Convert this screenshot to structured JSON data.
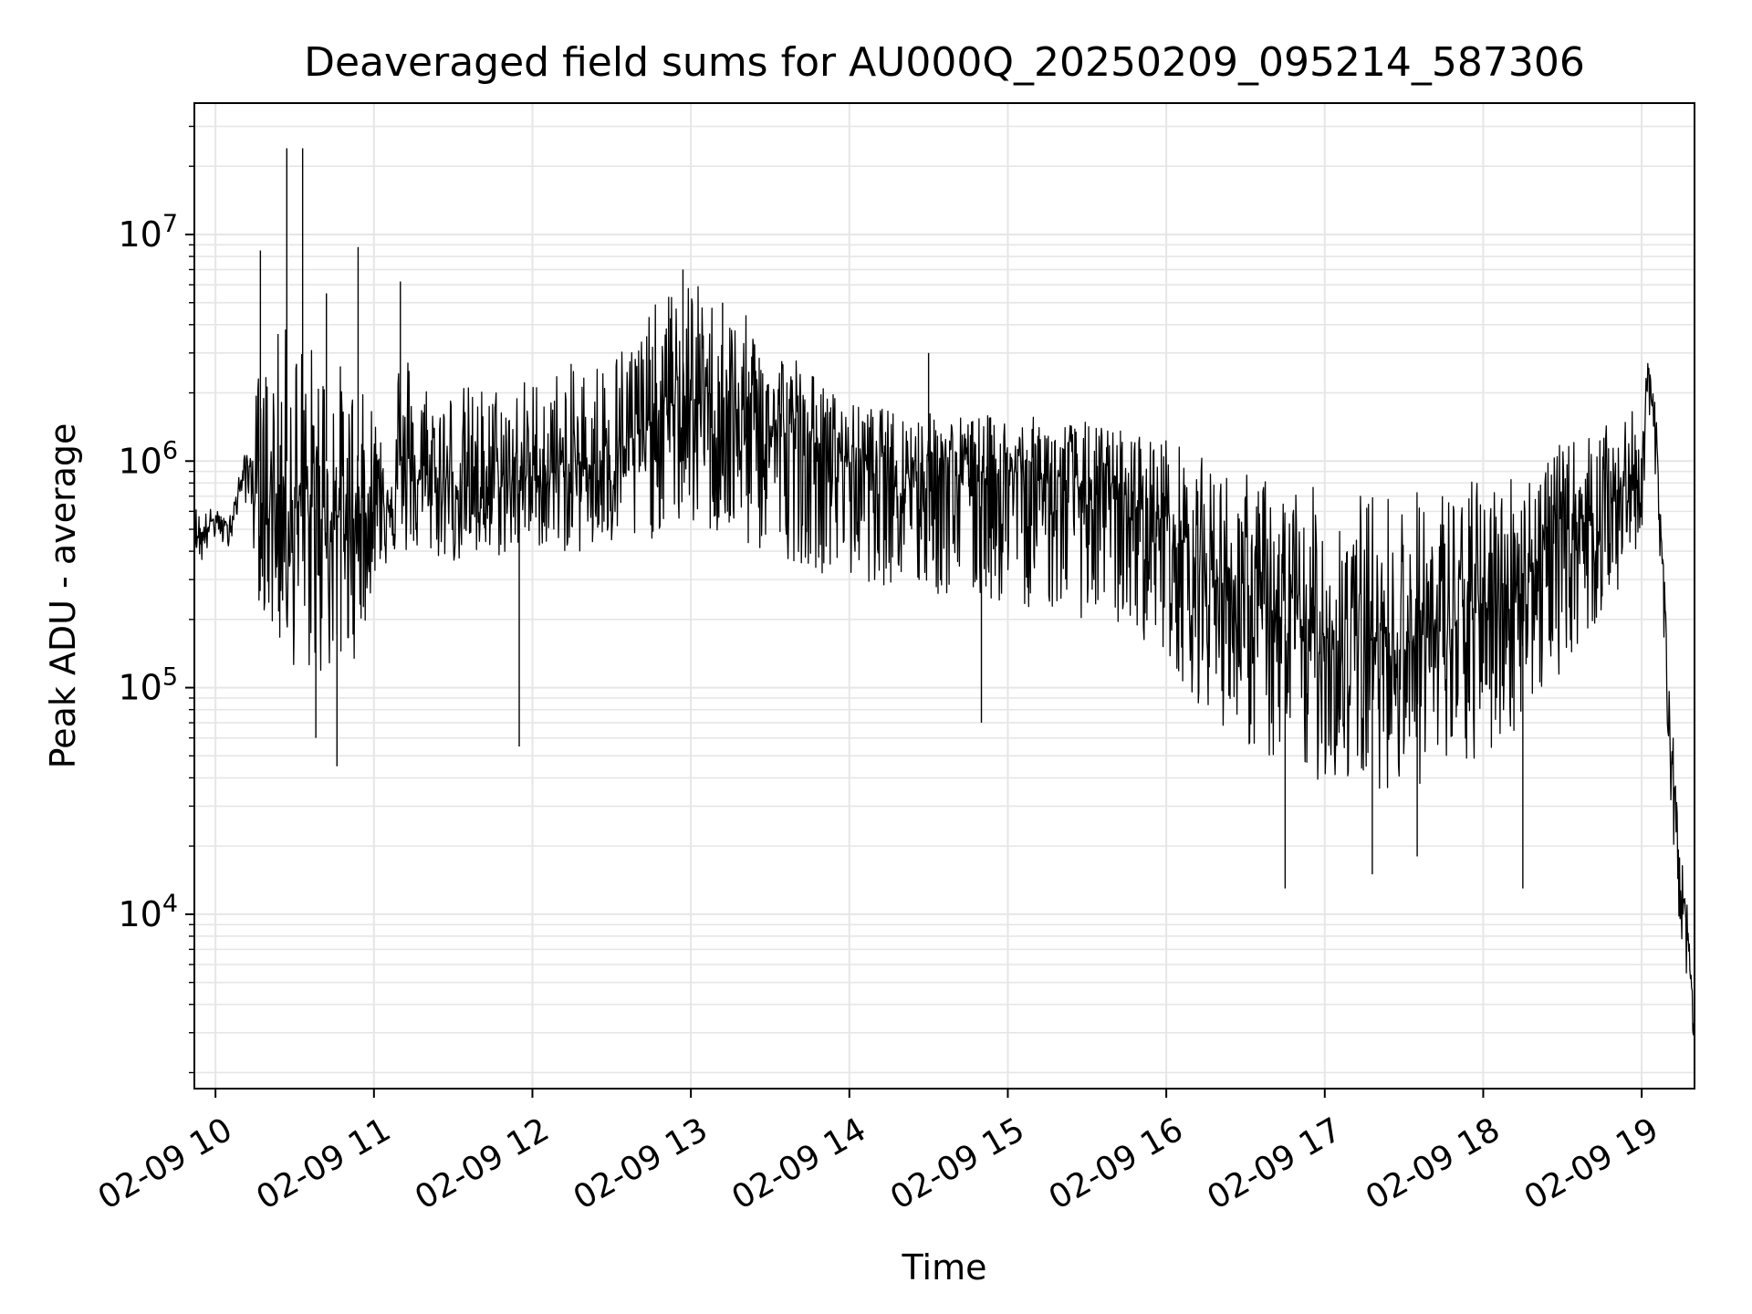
{
  "chart_data": {
    "type": "line",
    "title": "Deaveraged field sums for AU000Q_20250209_095214_587306",
    "xlabel": "Time",
    "ylabel": "Peak ADU - average",
    "y_scale": "log",
    "ylim": [
      1700,
      38000000
    ],
    "xlim": [
      "2025-02-09 09:52",
      "2025-02-09 19:20"
    ],
    "grid": true,
    "line_color": "#000000",
    "x_ticks": [
      {
        "label": "02-09 10",
        "time": "2025-02-09 10:00"
      },
      {
        "label": "02-09 11",
        "time": "2025-02-09 11:00"
      },
      {
        "label": "02-09 12",
        "time": "2025-02-09 12:00"
      },
      {
        "label": "02-09 13",
        "time": "2025-02-09 13:00"
      },
      {
        "label": "02-09 14",
        "time": "2025-02-09 14:00"
      },
      {
        "label": "02-09 15",
        "time": "2025-02-09 15:00"
      },
      {
        "label": "02-09 16",
        "time": "2025-02-09 16:00"
      },
      {
        "label": "02-09 17",
        "time": "2025-02-09 17:00"
      },
      {
        "label": "02-09 18",
        "time": "2025-02-09 18:00"
      },
      {
        "label": "02-09 19",
        "time": "2025-02-09 19:00"
      }
    ],
    "y_ticks": [
      {
        "base": "10",
        "exp": "4",
        "value": 10000
      },
      {
        "base": "10",
        "exp": "5",
        "value": 100000
      },
      {
        "base": "10",
        "exp": "6",
        "value": 1000000
      },
      {
        "base": "10",
        "exp": "7",
        "value": 10000000
      }
    ],
    "series": [
      {
        "x": [
          "2025-02-09 09:52",
          "2025-02-09 09:55",
          "2025-02-09 09:58",
          "2025-02-09 10:01",
          "2025-02-09 10:04",
          "2025-02-09 10:07",
          "2025-02-09 10:10",
          "2025-02-09 10:13",
          "2025-02-09 10:16",
          "2025-02-09 10:20",
          "2025-02-09 10:25",
          "2025-02-09 10:30",
          "2025-02-09 10:35",
          "2025-02-09 10:40",
          "2025-02-09 10:45",
          "2025-02-09 10:50",
          "2025-02-09 10:55",
          "2025-02-09 11:00",
          "2025-02-09 11:05",
          "2025-02-09 11:10",
          "2025-02-09 11:15",
          "2025-02-09 11:20",
          "2025-02-09 11:30",
          "2025-02-09 11:40",
          "2025-02-09 11:50",
          "2025-02-09 12:00",
          "2025-02-09 12:10",
          "2025-02-09 12:20",
          "2025-02-09 12:30",
          "2025-02-09 12:40",
          "2025-02-09 12:50",
          "2025-02-09 13:00",
          "2025-02-09 13:10",
          "2025-02-09 13:20",
          "2025-02-09 13:30",
          "2025-02-09 13:40",
          "2025-02-09 13:50",
          "2025-02-09 14:00",
          "2025-02-09 14:15",
          "2025-02-09 14:30",
          "2025-02-09 14:45",
          "2025-02-09 15:00",
          "2025-02-09 15:15",
          "2025-02-09 15:30",
          "2025-02-09 15:45",
          "2025-02-09 16:00",
          "2025-02-09 16:10",
          "2025-02-09 16:20",
          "2025-02-09 16:30",
          "2025-02-09 16:40",
          "2025-02-09 16:50",
          "2025-02-09 17:00",
          "2025-02-09 17:15",
          "2025-02-09 17:30",
          "2025-02-09 17:45",
          "2025-02-09 18:00",
          "2025-02-09 18:15",
          "2025-02-09 18:30",
          "2025-02-09 18:45",
          "2025-02-09 18:55",
          "2025-02-09 19:00",
          "2025-02-09 19:02",
          "2025-02-09 19:05",
          "2025-02-09 19:08",
          "2025-02-09 19:11",
          "2025-02-09 19:14",
          "2025-02-09 19:17",
          "2025-02-09 19:20"
        ],
        "y": [
          500000,
          450000,
          540000,
          560000,
          500000,
          600000,
          850000,
          950000,
          700000,
          650000,
          700000,
          650000,
          600000,
          620000,
          580000,
          560000,
          560000,
          650000,
          700000,
          900000,
          850000,
          800000,
          800000,
          750000,
          800000,
          850000,
          900000,
          950000,
          1050000,
          1300000,
          1700000,
          1900000,
          1600000,
          1500000,
          1400000,
          1300000,
          1150000,
          1050000,
          950000,
          950000,
          900000,
          900000,
          850000,
          750000,
          650000,
          550000,
          380000,
          300000,
          250000,
          200000,
          180000,
          170000,
          165000,
          165000,
          175000,
          230000,
          320000,
          480000,
          650000,
          800000,
          900000,
          2400000,
          1500000,
          350000,
          60000,
          18000,
          9000,
          3000
        ],
        "envelope_low": [
          420000,
          350000,
          430000,
          460000,
          400000,
          480000,
          700000,
          600000,
          250000,
          180000,
          140000,
          120000,
          110000,
          110000,
          110000,
          120000,
          150000,
          300000,
          350000,
          380000,
          380000,
          380000,
          350000,
          350000,
          380000,
          420000,
          400000,
          380000,
          400000,
          400000,
          500000,
          500000,
          450000,
          400000,
          380000,
          360000,
          320000,
          300000,
          280000,
          250000,
          240000,
          230000,
          220000,
          200000,
          180000,
          140000,
          90000,
          70000,
          55000,
          45000,
          40000,
          38000,
          36000,
          36000,
          38000,
          45000,
          70000,
          120000,
          200000,
          300000,
          380000,
          1800000,
          800000,
          150000,
          30000,
          10000,
          5000,
          2600
        ],
        "envelope_high": [
          650000,
          600000,
          620000,
          600000,
          550000,
          700000,
          1000000,
          1200000,
          2500000,
          3000000,
          4000000,
          4000000,
          3500000,
          3200000,
          3000000,
          2500000,
          2000000,
          2000000,
          2400000,
          3500000,
          3000000,
          2400000,
          2200000,
          2200000,
          2300000,
          2400000,
          2600000,
          2800000,
          3200000,
          4000000,
          5500000,
          6500000,
          5000000,
          4500000,
          3500000,
          3000000,
          2200000,
          1800000,
          1700000,
          1650000,
          1600000,
          1600000,
          1550000,
          1500000,
          1400000,
          1300000,
          1100000,
          950000,
          900000,
          850000,
          800000,
          750000,
          750000,
          750000,
          800000,
          850000,
          950000,
          1200000,
          1400000,
          1600000,
          1800000,
          2800000,
          2000000,
          500000,
          90000,
          25000,
          12000,
          3500
        ]
      }
    ],
    "spikes": [
      {
        "time": "2025-02-09 10:17",
        "value": 8500000
      },
      {
        "time": "2025-02-09 10:27",
        "value": 24000000
      },
      {
        "time": "2025-02-09 10:33",
        "value": 24000000
      },
      {
        "time": "2025-02-09 10:42",
        "value": 5500000
      },
      {
        "time": "2025-02-09 10:54",
        "value": 8800000
      },
      {
        "time": "2025-02-09 11:10",
        "value": 6200000
      },
      {
        "time": "2025-02-09 12:57",
        "value": 7000000
      },
      {
        "time": "2025-02-09 13:12",
        "value": 5000000
      },
      {
        "time": "2025-02-09 14:30",
        "value": 3000000
      }
    ],
    "dips": [
      {
        "time": "2025-02-09 10:38",
        "value": 60000
      },
      {
        "time": "2025-02-09 10:46",
        "value": 45000
      },
      {
        "time": "2025-02-09 11:55",
        "value": 55000
      },
      {
        "time": "2025-02-09 14:50",
        "value": 70000
      },
      {
        "time": "2025-02-09 16:45",
        "value": 13000
      },
      {
        "time": "2025-02-09 17:18",
        "value": 15000
      },
      {
        "time": "2025-02-09 17:35",
        "value": 18000
      },
      {
        "time": "2025-02-09 18:15",
        "value": 13000
      }
    ]
  }
}
